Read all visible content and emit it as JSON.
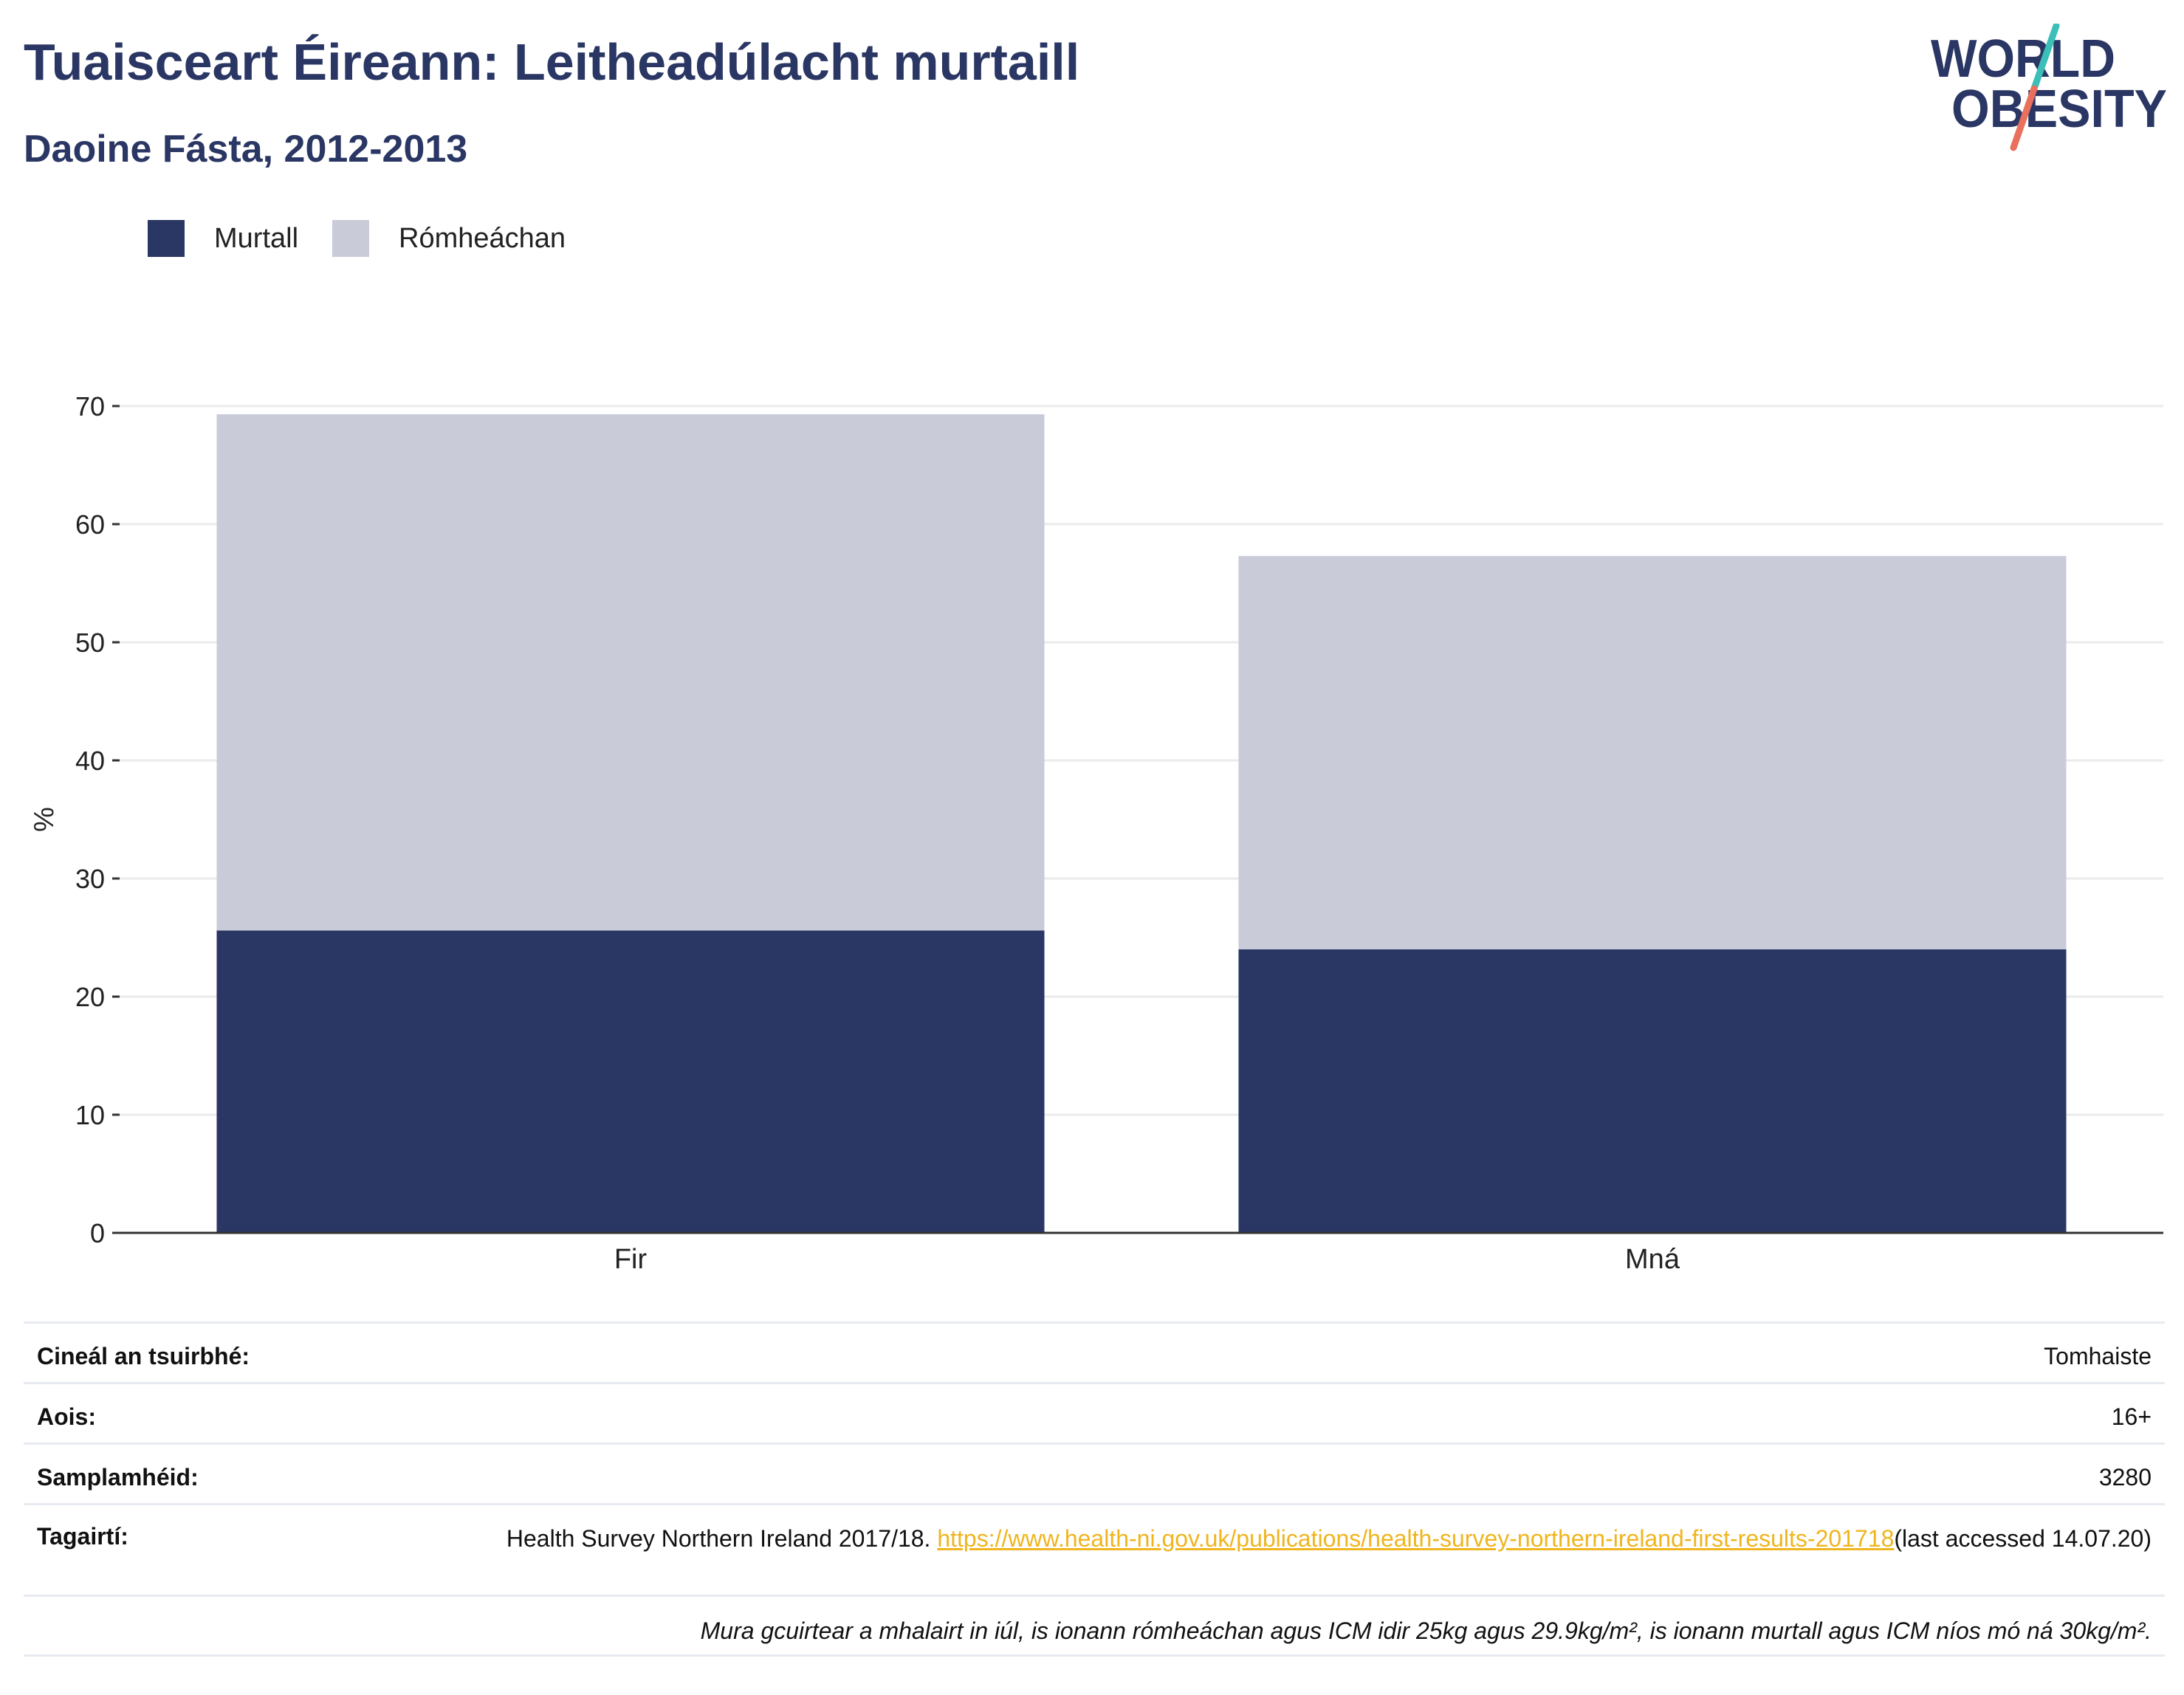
{
  "title": "Tuaisceart Éireann: Leitheadúlacht murtaill",
  "subtitle": "Daoine Fásta, 2012-2013",
  "logo": {
    "line1": "WORLD",
    "line2": "OBESITY"
  },
  "legend": [
    {
      "label": "Murtall",
      "color": "#2a3663"
    },
    {
      "label": "Rómheáchan",
      "color": "#c9ccd8"
    }
  ],
  "chart_data": {
    "type": "bar",
    "stacked": true,
    "categories": [
      "Fir",
      "Mná"
    ],
    "series": [
      {
        "name": "Murtall",
        "values": [
          25.6,
          24.0
        ],
        "color": "#2a3663"
      },
      {
        "name": "Rómheáchan",
        "values": [
          43.7,
          33.3
        ],
        "color": "#c9ccd8"
      }
    ],
    "ylabel": "%",
    "ylim": [
      0,
      70
    ],
    "yticks": [
      0,
      10,
      20,
      30,
      40,
      50,
      60,
      70
    ],
    "grid": true
  },
  "info": {
    "survey_type_label": "Cineál an tsuirbhé:",
    "survey_type_value": "Tomhaiste",
    "age_label": "Aois:",
    "age_value": "16+",
    "sample_label": "Samplamhéid:",
    "sample_value": "3280",
    "refs_label": "Tagairtí:",
    "ref_text": "Health Survey Northern Ireland 2017/18. ",
    "ref_link": "https://www.health-ni.gov.uk/publications/health-survey-northern-ireland-first-results-201718",
    "ref_suffix": "(last accessed 14.07.20)",
    "note": "Mura gcuirtear a mhalairt in iúl, is ionann rómheáchan agus ICM idir 25kg agus 29.9kg/m², is ionann murtall agus ICM níos mó ná 30kg/m²."
  }
}
